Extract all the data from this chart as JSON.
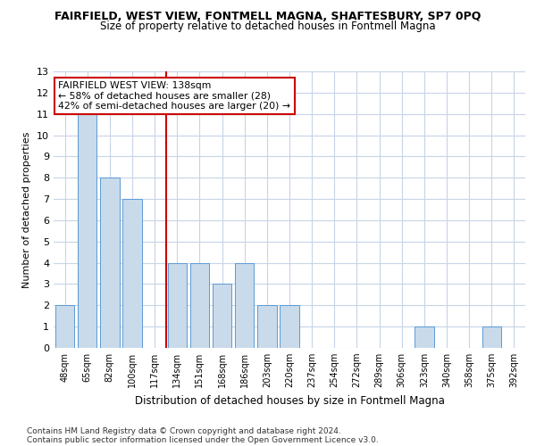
{
  "title_line1": "FAIRFIELD, WEST VIEW, FONTMELL MAGNA, SHAFTESBURY, SP7 0PQ",
  "title_line2": "Size of property relative to detached houses in Fontmell Magna",
  "xlabel": "Distribution of detached houses by size in Fontmell Magna",
  "ylabel": "Number of detached properties",
  "categories": [
    "48sqm",
    "65sqm",
    "82sqm",
    "100sqm",
    "117sqm",
    "134sqm",
    "151sqm",
    "168sqm",
    "186sqm",
    "203sqm",
    "220sqm",
    "237sqm",
    "254sqm",
    "272sqm",
    "289sqm",
    "306sqm",
    "323sqm",
    "340sqm",
    "358sqm",
    "375sqm",
    "392sqm"
  ],
  "values": [
    2,
    11,
    8,
    7,
    0,
    4,
    4,
    3,
    4,
    2,
    2,
    0,
    0,
    0,
    0,
    0,
    1,
    0,
    0,
    1,
    0
  ],
  "bar_color": "#c9daea",
  "bar_edge_color": "#5b9bd5",
  "vline_index": 4.5,
  "annotation_title": "FAIRFIELD WEST VIEW: 138sqm",
  "annotation_line1": "← 58% of detached houses are smaller (28)",
  "annotation_line2": "42% of semi-detached houses are larger (20) →",
  "annotation_box_color": "#ffffff",
  "annotation_box_edge_color": "#cc0000",
  "vline_color": "#cc0000",
  "ylim": [
    0,
    13
  ],
  "yticks": [
    0,
    1,
    2,
    3,
    4,
    5,
    6,
    7,
    8,
    9,
    10,
    11,
    12,
    13
  ],
  "footer_line1": "Contains HM Land Registry data © Crown copyright and database right 2024.",
  "footer_line2": "Contains public sector information licensed under the Open Government Licence v3.0.",
  "bg_color": "#ffffff",
  "grid_color": "#c8d4e8",
  "bar_width": 0.85
}
